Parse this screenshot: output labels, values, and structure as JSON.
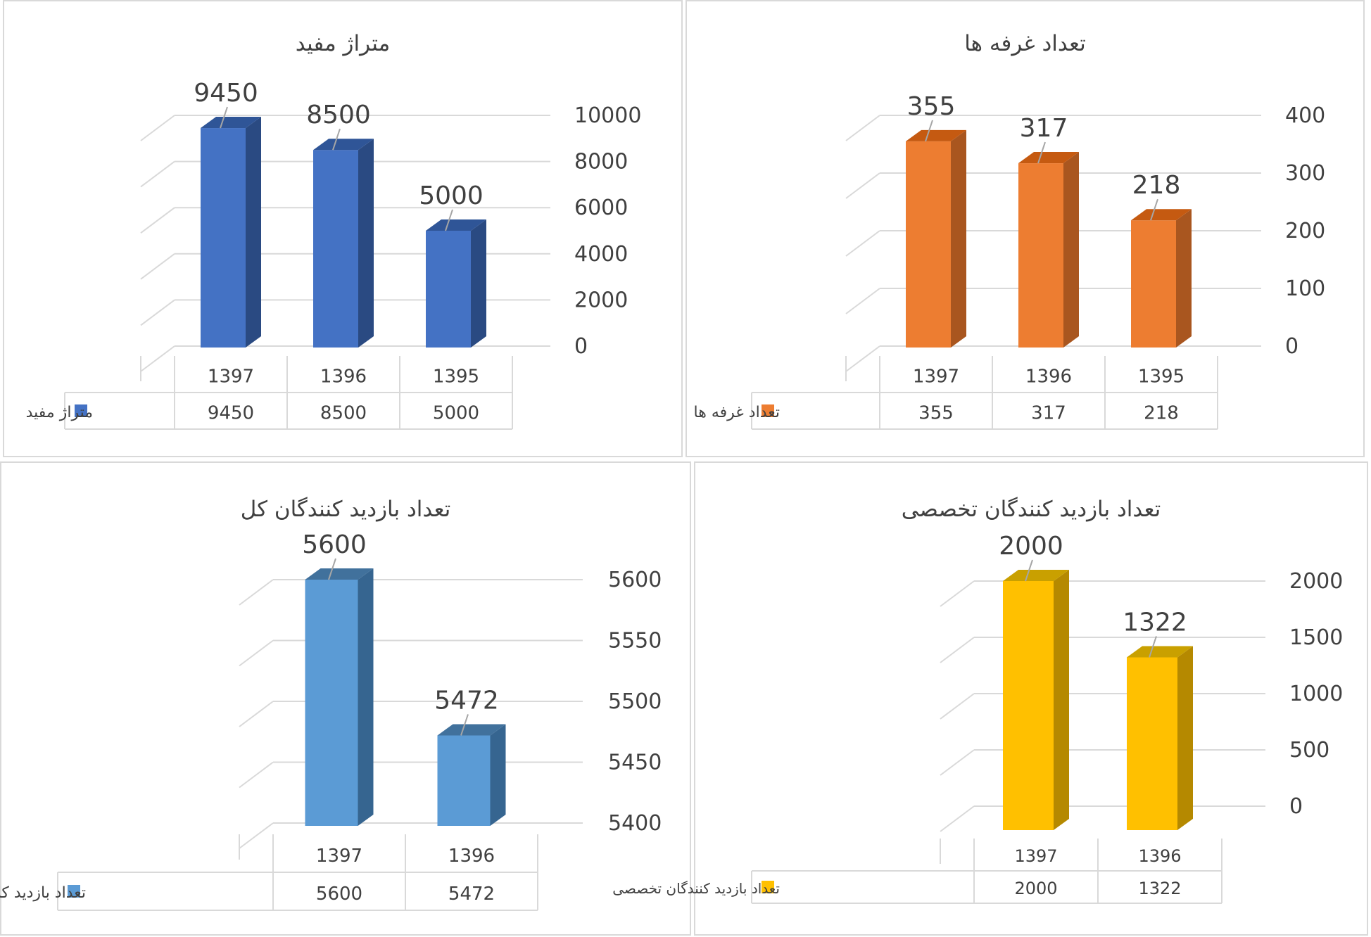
{
  "chart_data": [
    {
      "type": "bar",
      "title": "متراژ مفید",
      "categories": [
        "1397",
        "1396",
        "1395"
      ],
      "series": [
        {
          "name": "متراژ مفید",
          "values": [
            9450,
            8500,
            5000
          ]
        }
      ],
      "ylim": [
        0,
        10000
      ],
      "yticks": [
        "0",
        "2000",
        "4000",
        "6000",
        "8000",
        "10000"
      ],
      "data_labels": [
        "9450",
        "8500",
        "5000"
      ],
      "table_values": [
        "9450",
        "8500",
        "5000"
      ],
      "color": "#4472c4",
      "side_color": "#2a4a82",
      "top_color": "#2f5597",
      "grid": true,
      "legend": "data-table"
    },
    {
      "type": "bar",
      "title": "تعداد غرفه ها",
      "categories": [
        "1397",
        "1396",
        "1395"
      ],
      "series": [
        {
          "name": "تعداد غرفه ها",
          "values": [
            355,
            317,
            218
          ]
        }
      ],
      "ylim": [
        0,
        400
      ],
      "yticks": [
        "0",
        "100",
        "200",
        "300",
        "400"
      ],
      "data_labels": [
        "355",
        "317",
        "218"
      ],
      "table_values": [
        "355",
        "317",
        "218"
      ],
      "color": "#ed7d31",
      "side_color": "#a9561f",
      "top_color": "#c55a11",
      "grid": true,
      "legend": "data-table"
    },
    {
      "type": "bar",
      "title": "تعداد بازدید کنندگان کل",
      "categories": [
        "1397",
        "1396"
      ],
      "series": [
        {
          "name": "تعداد بازدید کنندگان کل",
          "values": [
            5600,
            5472
          ]
        }
      ],
      "ylim": [
        5400,
        5600
      ],
      "yticks": [
        "5400",
        "5450",
        "5500",
        "5550",
        "5600"
      ],
      "data_labels": [
        "5600",
        "5472"
      ],
      "table_values": [
        "5600",
        "5472"
      ],
      "color": "#5b9bd5",
      "side_color": "#366590",
      "top_color": "#41719c",
      "grid": true,
      "legend": "data-table"
    },
    {
      "type": "bar",
      "title": "تعداد بازدید کنندگان تخصصی",
      "categories": [
        "1397",
        "1396"
      ],
      "series": [
        {
          "name": "تعداد بازدید کنندگان تخصصی",
          "values": [
            2000,
            1322
          ]
        }
      ],
      "ylim": [
        0,
        2000
      ],
      "yticks": [
        "0",
        "500",
        "1000",
        "1500",
        "2000"
      ],
      "data_labels": [
        "2000",
        "1322"
      ],
      "table_values": [
        "2000",
        "1322"
      ],
      "color": "#ffc000",
      "side_color": "#b58900",
      "top_color": "#c9a000",
      "grid": true,
      "legend": "data-table"
    }
  ]
}
